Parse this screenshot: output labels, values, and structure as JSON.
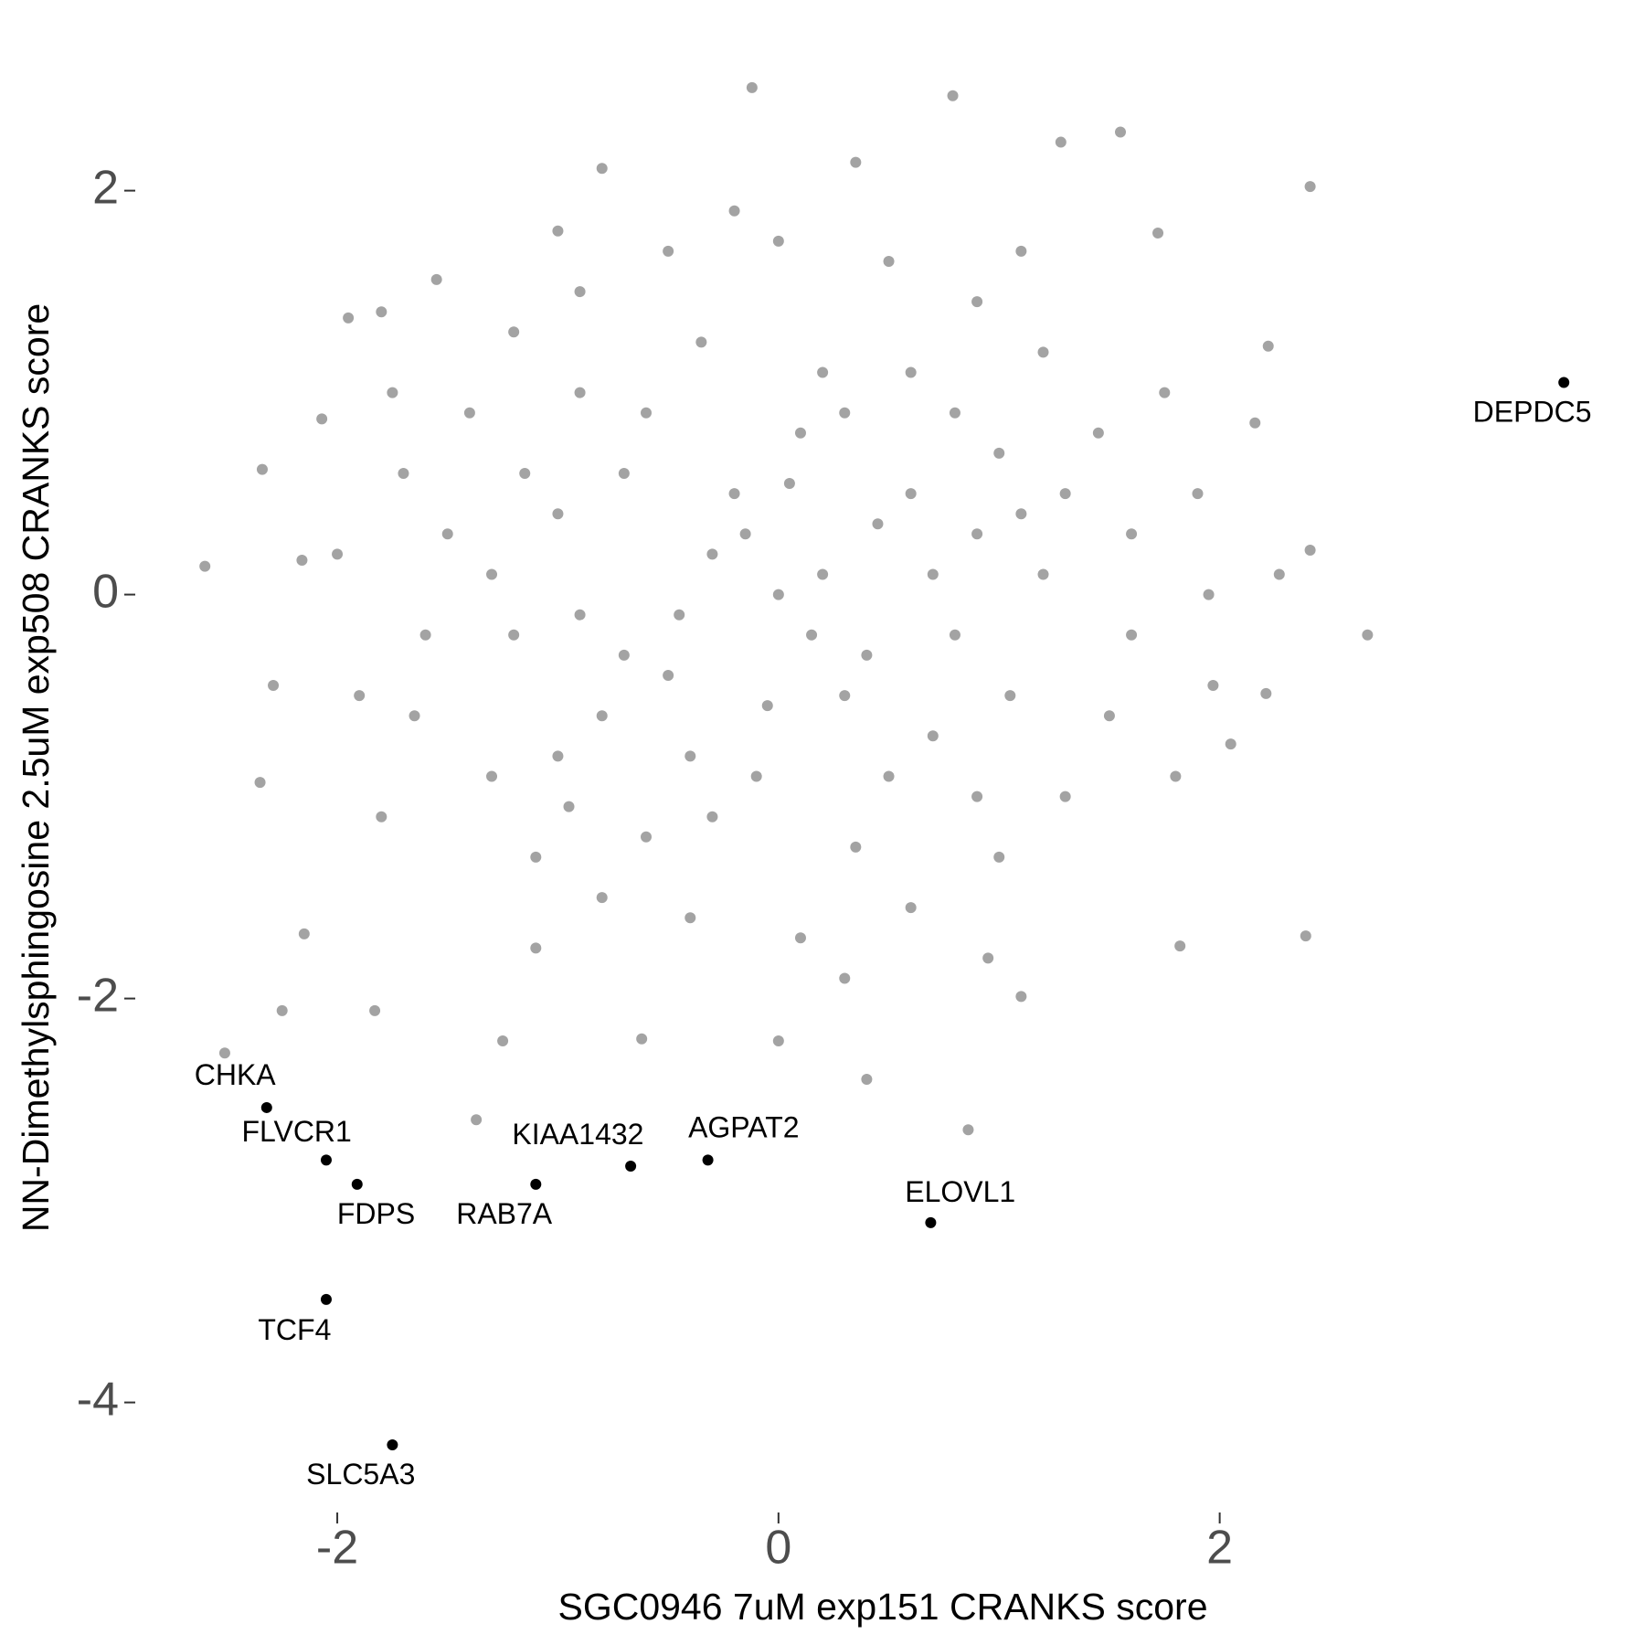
{
  "chart_data": {
    "type": "scatter",
    "x_label": "SGC0946 7uM exp151 CRANKS score",
    "y_label": "NN-Dimethylsphingosine 2.5uM exp508 CRANKS score",
    "xlim": [
      -2.75,
      3.7
    ],
    "ylim": [
      -4.4,
      2.6
    ],
    "xticks": [
      -2,
      0,
      2
    ],
    "yticks": [
      -4,
      -2,
      0,
      2
    ],
    "series": [
      {
        "color": "#a3a3a3",
        "x": [
          -0.12,
          0.79,
          1.55,
          1.28,
          2.41,
          -0.8,
          0.35,
          -2.6,
          2.67,
          2.39,
          1.82,
          0.4,
          0.86,
          -1.37,
          -2.51,
          -2.25,
          -2.34,
          -2.29,
          -2.35,
          -1.95,
          -1.8,
          -1.55,
          2.22,
          2.41,
          2.16,
          2.21,
          2.05,
          1.72,
          -1.83,
          -1.25,
          0,
          -0.62,
          1.1,
          -2.16,
          -2.07,
          -2.15,
          2.27,
          1.97,
          -1.5,
          -1.6,
          -1.4,
          -1.3,
          -1.2,
          -1.1,
          -0.9,
          -0.8,
          -0.5,
          -0.4,
          0,
          0.1,
          0.5,
          0.6,
          0.9,
          1,
          1.2,
          1.3,
          1.45,
          1.5,
          1.6,
          1.6,
          -1.7,
          -1.65,
          -1.8,
          -1.75,
          1.75,
          1.8,
          -0.2,
          0.3,
          -1,
          1.1,
          -1.1,
          0.95,
          -2,
          1.95,
          -1.9,
          1.9,
          0,
          0.2,
          -0.3,
          0.4,
          -0.5,
          0.6,
          -0.7,
          0.8,
          -0.9,
          0.1,
          -0.1,
          0.3,
          -0.4,
          0.7,
          -0.6,
          0.9,
          -0.8,
          0.5,
          -0.2,
          0.3,
          1,
          -1,
          1.05,
          -1,
          0.2,
          -0.3,
          0.6,
          -0.6,
          0.8,
          -0.9,
          0.15,
          -0.15,
          0.45,
          -0.45,
          0.7,
          -0.7,
          0.05,
          -0.05,
          1.2,
          -1.2,
          1.1,
          -1.15,
          0.35,
          -0.35,
          0.9,
          -0.95,
          1.3,
          -1.3
        ],
        "y": [
          2.51,
          2.47,
          2.29,
          2.24,
          2.02,
          2.11,
          2.14,
          0.14,
          -0.2,
          -1.69,
          -1.74,
          -2.4,
          -2.65,
          -2.6,
          -2.27,
          -2.06,
          0.62,
          -0.45,
          -0.93,
          1.37,
          1.4,
          1.56,
          1.23,
          0.22,
          0.85,
          -0.49,
          -0.74,
          1.79,
          -2.06,
          -2.21,
          -2.21,
          -2.2,
          -1.99,
          0.17,
          0.87,
          -1.68,
          0.1,
          -0.45,
          0.3,
          -0.2,
          0.9,
          -0.9,
          1.3,
          -1.3,
          1.5,
          -1.5,
          1.7,
          -1.6,
          1.75,
          -1.7,
          1.65,
          -1.55,
          1.45,
          -1.3,
          1.2,
          -1,
          0.8,
          -0.6,
          0.3,
          -0.2,
          0.6,
          -0.6,
          -1.1,
          1,
          1,
          -0.9,
          1.9,
          -1.9,
          1.8,
          1.7,
          -1.75,
          -1.8,
          0.2,
          0,
          -0.5,
          0.5,
          0,
          0.1,
          0.2,
          -0.3,
          -0.4,
          0.5,
          0.6,
          -0.2,
          -0.1,
          0.8,
          -0.9,
          0.9,
          -0.8,
          -0.7,
          0.9,
          0.3,
          -0.6,
          -0.9,
          0.5,
          -0.5,
          0.7,
          0.4,
          -0.5,
          -0.8,
          1.1,
          -1.1,
          1.1,
          -1.2,
          0.9,
          1,
          -0.2,
          0.3,
          0.35,
          -0.1,
          0.1,
          -0.3,
          0.55,
          -0.55,
          0.1,
          -0.2,
          0.4,
          0.6,
          -1.25,
          1.25,
          -1,
          -1.05,
          0.5,
          0.1
        ]
      },
      {
        "color": "#000000",
        "labels": [
          "CHKA",
          "FLVCR1",
          "FDPS",
          "TCF4",
          "SLC5A3",
          "RAB7A",
          "KIAA1432",
          "AGPAT2",
          "ELOVL1",
          "DEPDC5"
        ],
        "x": [
          -2.32,
          -2.05,
          -1.91,
          -2.05,
          -1.75,
          -1.1,
          -0.67,
          -0.32,
          0.69,
          3.56
        ],
        "y": [
          -2.54,
          -2.8,
          -2.92,
          -3.49,
          -4.21,
          -2.92,
          -2.83,
          -2.8,
          -3.11,
          1.05
        ]
      }
    ]
  }
}
